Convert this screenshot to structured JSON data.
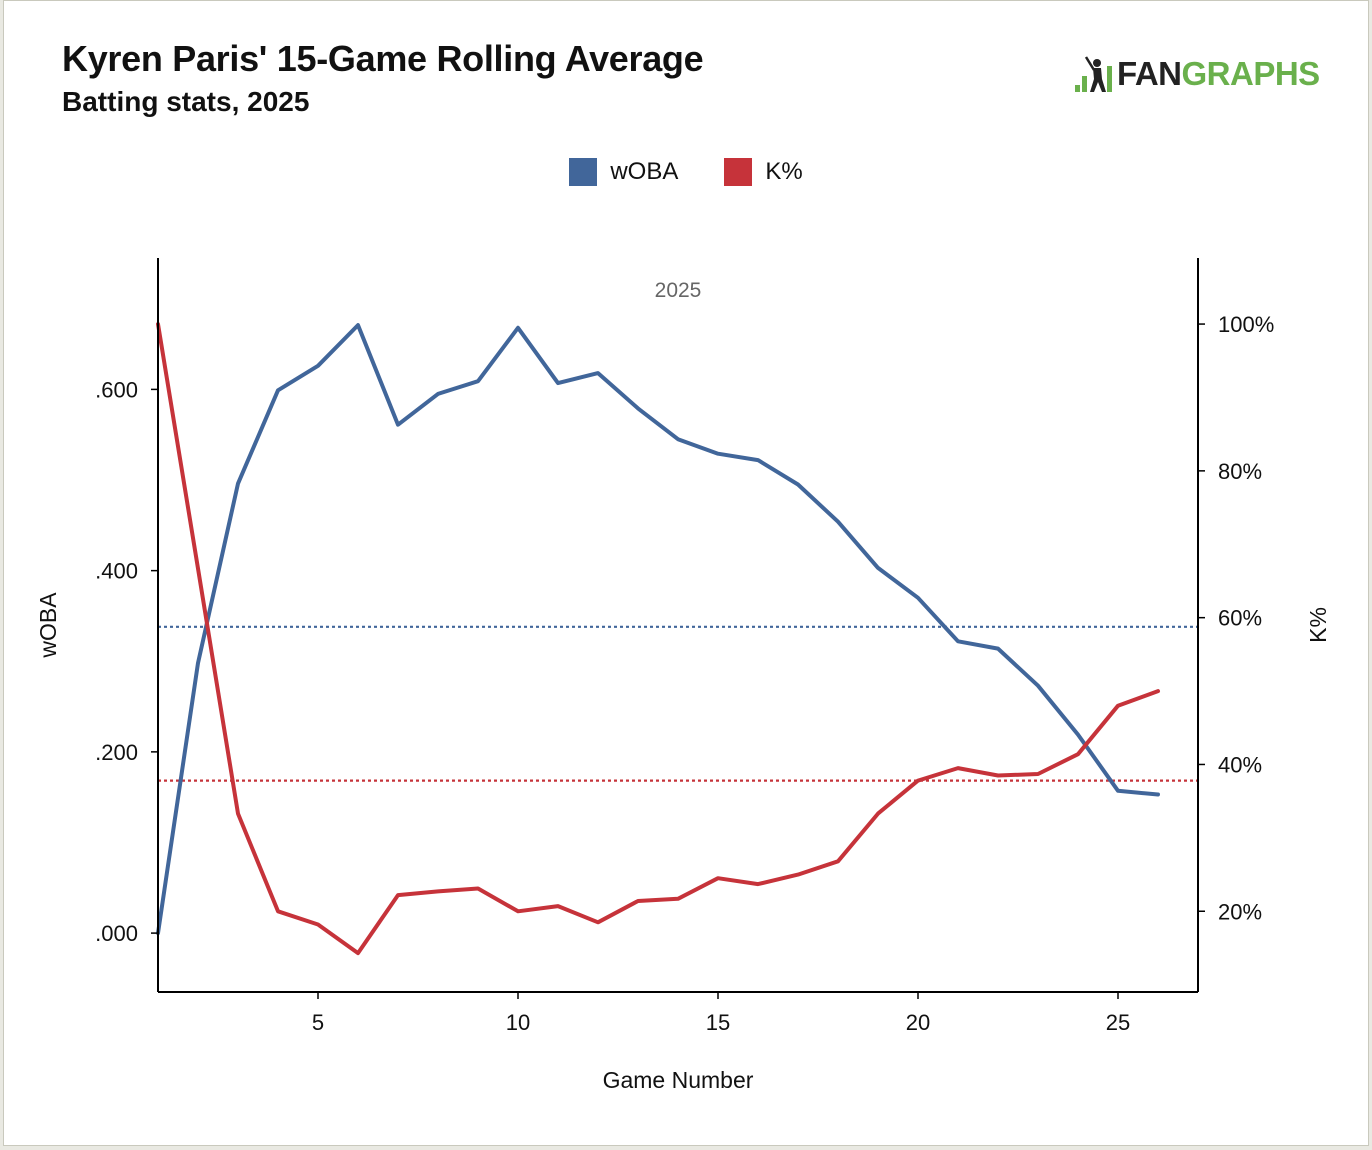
{
  "header": {
    "title": "Kyren Paris' 15-Game Rolling Average",
    "subtitle": "Batting stats, 2025",
    "logo_left": "FAN",
    "logo_right": "GRAPHS"
  },
  "colors": {
    "woba": "#41669a",
    "k_pct": "#c6333a",
    "logo_green": "#6ab04c"
  },
  "chart_data": {
    "type": "line",
    "panel_label": "2025",
    "xlabel": "Game Number",
    "ylabel_left": "wOBA",
    "ylabel_right": "K%",
    "xlim": [
      1,
      27
    ],
    "xticks": [
      5,
      10,
      15,
      20,
      25
    ],
    "ylim_left": [
      -0.065,
      0.745
    ],
    "yticks_left": [
      0,
      0.2,
      0.4,
      0.6
    ],
    "yticks_left_labels": [
      ".000",
      ".200",
      ".400",
      ".600"
    ],
    "ylim_right": [
      0.09,
      1.09
    ],
    "yticks_right": [
      0.2,
      0.4,
      0.6,
      0.8,
      1.0
    ],
    "yticks_right_labels": [
      "20%",
      "40%",
      "60%",
      "80%",
      "100%"
    ],
    "legend_position": "top-center",
    "x": [
      1,
      2,
      3,
      4,
      5,
      6,
      7,
      8,
      9,
      10,
      11,
      12,
      13,
      14,
      15,
      16,
      17,
      18,
      19,
      20,
      21,
      22,
      23,
      24,
      25,
      26
    ],
    "series": [
      {
        "name": "wOBA",
        "axis": "left",
        "values": [
          0.0,
          0.298,
          0.496,
          0.599,
          0.626,
          0.671,
          0.561,
          0.595,
          0.609,
          0.668,
          0.607,
          0.618,
          0.579,
          0.545,
          0.529,
          0.522,
          0.495,
          0.454,
          0.403,
          0.37,
          0.322,
          0.314,
          0.273,
          0.219,
          0.157,
          0.153
        ],
        "average": 0.338
      },
      {
        "name": "K%",
        "axis": "right",
        "values": [
          1.0,
          0.667,
          0.333,
          0.2,
          0.182,
          0.143,
          0.222,
          0.227,
          0.231,
          0.2,
          0.207,
          0.185,
          0.214,
          0.217,
          0.245,
          0.237,
          0.25,
          0.268,
          0.333,
          0.378,
          0.395,
          0.385,
          0.387,
          0.414,
          0.48,
          0.5
        ],
        "average": 0.378
      }
    ]
  }
}
